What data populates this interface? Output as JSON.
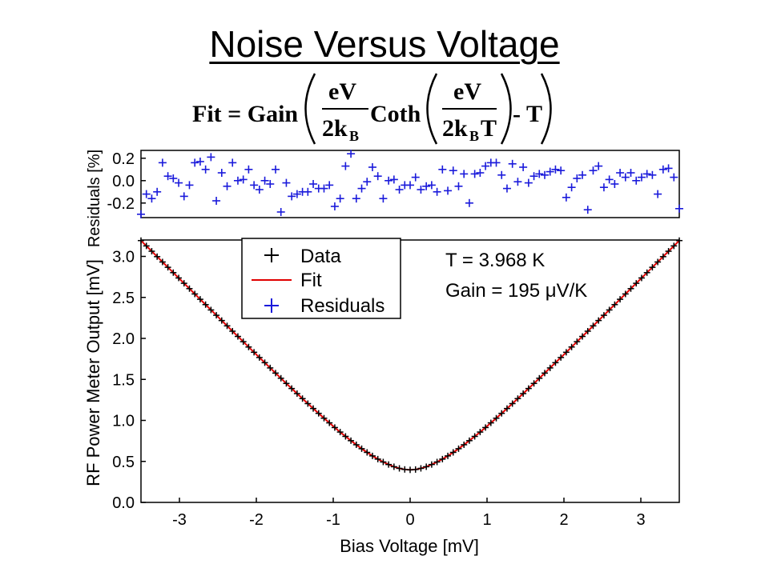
{
  "page": {
    "title": "Noise Versus Voltage"
  },
  "formula": {
    "lhs": "Fit = Gain",
    "frac1_num": "eV",
    "frac1_den": "2k",
    "sub": "B",
    "coth": "Coth",
    "frac2_num": "eV",
    "frac2_den_a": "2k",
    "frac2_den_b": "T",
    "minus_t": "- T"
  },
  "chart_data": [
    {
      "type": "scatter",
      "panel": "residuals",
      "title": "",
      "xlabel": "",
      "ylabel": "Residuals [%]",
      "xlim": [
        -3.5,
        3.5
      ],
      "ylim": [
        -0.33,
        0.27
      ],
      "yticks": [
        0.2,
        0.0,
        -0.2
      ],
      "ytick_labels": [
        "0.2",
        "0.0",
        "-0.2"
      ],
      "color": "#1a1adb",
      "series": [
        {
          "name": "Residuals",
          "x": [
            -3.5,
            -3.43,
            -3.36,
            -3.29,
            -3.22,
            -3.15,
            -3.08,
            -3.01,
            -2.94,
            -2.87,
            -2.8,
            -2.73,
            -2.66,
            -2.59,
            -2.52,
            -2.45,
            -2.38,
            -2.31,
            -2.24,
            -2.17,
            -2.1,
            -2.03,
            -1.96,
            -1.89,
            -1.82,
            -1.75,
            -1.68,
            -1.61,
            -1.54,
            -1.47,
            -1.4,
            -1.33,
            -1.26,
            -1.19,
            -1.12,
            -1.05,
            -0.98,
            -0.91,
            -0.84,
            -0.77,
            -0.7,
            -0.63,
            -0.56,
            -0.49,
            -0.42,
            -0.35,
            -0.28,
            -0.21,
            -0.14,
            -0.07,
            0.0,
            0.07,
            0.14,
            0.21,
            0.28,
            0.35,
            0.42,
            0.49,
            0.56,
            0.63,
            0.7,
            0.77,
            0.84,
            0.91,
            0.98,
            1.05,
            1.12,
            1.19,
            1.26,
            1.33,
            1.4,
            1.47,
            1.54,
            1.61,
            1.68,
            1.75,
            1.82,
            1.89,
            1.96,
            2.03,
            2.1,
            2.17,
            2.24,
            2.31,
            2.38,
            2.45,
            2.52,
            2.59,
            2.66,
            2.73,
            2.8,
            2.87,
            2.94,
            3.01,
            3.08,
            3.15,
            3.22,
            3.29,
            3.36,
            3.43,
            3.5
          ],
          "y": [
            -0.3,
            -0.12,
            -0.16,
            -0.1,
            0.16,
            0.04,
            0.02,
            -0.02,
            -0.14,
            -0.04,
            0.16,
            0.17,
            0.1,
            0.21,
            -0.18,
            0.07,
            -0.05,
            0.16,
            0.0,
            0.01,
            0.1,
            -0.04,
            -0.08,
            0.0,
            -0.03,
            0.1,
            -0.28,
            -0.02,
            -0.14,
            -0.12,
            -0.1,
            -0.1,
            -0.03,
            -0.07,
            -0.07,
            -0.04,
            -0.23,
            -0.16,
            0.13,
            0.24,
            -0.16,
            -0.07,
            -0.01,
            0.12,
            0.04,
            -0.16,
            0.0,
            0.01,
            -0.08,
            -0.04,
            -0.04,
            0.03,
            -0.08,
            -0.05,
            -0.04,
            -0.1,
            0.1,
            -0.09,
            0.09,
            -0.05,
            0.06,
            -0.2,
            0.06,
            0.07,
            0.13,
            0.16,
            0.16,
            0.05,
            -0.07,
            0.15,
            -0.01,
            0.12,
            -0.02,
            0.04,
            0.06,
            0.05,
            0.08,
            0.1,
            0.09,
            -0.15,
            -0.06,
            0.02,
            0.05,
            -0.26,
            0.09,
            0.13,
            -0.06,
            0.01,
            -0.03,
            0.07,
            0.03,
            0.07,
            0.0,
            0.03,
            0.06,
            0.05,
            -0.12,
            0.1,
            0.11,
            0.03,
            -0.25
          ]
        }
      ]
    },
    {
      "type": "line",
      "panel": "main",
      "title": "",
      "xlabel": "Bias Voltage [mV]",
      "ylabel": "RF Power Meter Output [mV]",
      "xlim": [
        -3.5,
        3.5
      ],
      "ylim": [
        0.0,
        3.2
      ],
      "xticks": [
        -3,
        -2,
        -1,
        0,
        1,
        2,
        3
      ],
      "xtick_labels": [
        "-3",
        "-2",
        "-1",
        "0",
        "1",
        "2",
        "3"
      ],
      "yticks": [
        0.0,
        0.5,
        1.0,
        1.5,
        2.0,
        2.5,
        3.0
      ],
      "ytick_labels": [
        "0.0",
        "0.5",
        "1.0",
        "1.5",
        "2.0",
        "2.5",
        "3.0"
      ],
      "legend": {
        "position": "upper-left",
        "entries": [
          "Data",
          "Fit",
          "Residuals"
        ]
      },
      "annotations": [
        "T = 3.968 K",
        "Gain = 195 μV/K"
      ],
      "series": [
        {
          "name": "Data",
          "color": "#000000",
          "marker": "+",
          "x": [
            -3.5,
            -3.43,
            -3.36,
            -3.29,
            -3.22,
            -3.15,
            -3.08,
            -3.01,
            -2.94,
            -2.87,
            -2.8,
            -2.73,
            -2.66,
            -2.59,
            -2.52,
            -2.45,
            -2.38,
            -2.31,
            -2.24,
            -2.17,
            -2.1,
            -2.03,
            -1.96,
            -1.89,
            -1.82,
            -1.75,
            -1.68,
            -1.61,
            -1.54,
            -1.47,
            -1.4,
            -1.33,
            -1.26,
            -1.19,
            -1.12,
            -1.05,
            -0.98,
            -0.91,
            -0.84,
            -0.77,
            -0.7,
            -0.63,
            -0.56,
            -0.49,
            -0.42,
            -0.35,
            -0.28,
            -0.21,
            -0.14,
            -0.07,
            0.0,
            0.07,
            0.14,
            0.21,
            0.28,
            0.35,
            0.42,
            0.49,
            0.56,
            0.63,
            0.7,
            0.77,
            0.84,
            0.91,
            0.98,
            1.05,
            1.12,
            1.19,
            1.26,
            1.33,
            1.4,
            1.47,
            1.54,
            1.61,
            1.68,
            1.75,
            1.82,
            1.89,
            1.96,
            2.03,
            2.1,
            2.17,
            2.24,
            2.31,
            2.38,
            2.45,
            2.52,
            2.59,
            2.66,
            2.73,
            2.8,
            2.87,
            2.94,
            3.01,
            3.08,
            3.15,
            3.22,
            3.29,
            3.36,
            3.43,
            3.5
          ],
          "y": [
            3.193,
            3.128,
            3.063,
            2.997,
            2.932,
            2.867,
            2.802,
            2.737,
            2.672,
            2.607,
            2.542,
            2.477,
            2.412,
            2.347,
            2.282,
            2.218,
            2.153,
            2.088,
            2.024,
            1.96,
            1.895,
            1.831,
            1.767,
            1.704,
            1.64,
            1.577,
            1.514,
            1.451,
            1.389,
            1.327,
            1.266,
            1.205,
            1.145,
            1.086,
            1.027,
            0.97,
            0.913,
            0.858,
            0.805,
            0.753,
            0.703,
            0.655,
            0.61,
            0.567,
            0.528,
            0.493,
            0.462,
            0.435,
            0.415,
            0.402,
            0.397,
            0.401,
            0.415,
            0.435,
            0.462,
            0.493,
            0.528,
            0.567,
            0.61,
            0.655,
            0.703,
            0.753,
            0.805,
            0.858,
            0.913,
            0.97,
            1.027,
            1.086,
            1.145,
            1.205,
            1.266,
            1.327,
            1.389,
            1.451,
            1.514,
            1.577,
            1.64,
            1.704,
            1.767,
            1.831,
            1.895,
            1.96,
            2.024,
            2.088,
            2.153,
            2.218,
            2.282,
            2.347,
            2.412,
            2.477,
            2.542,
            2.607,
            2.672,
            2.737,
            2.802,
            2.867,
            2.932,
            2.997,
            3.063,
            3.128,
            3.193
          ]
        },
        {
          "name": "Fit",
          "color": "#e00000",
          "x": [
            -3.5,
            -3.43,
            -3.36,
            -3.29,
            -3.22,
            -3.15,
            -3.08,
            -3.01,
            -2.94,
            -2.87,
            -2.8,
            -2.73,
            -2.66,
            -2.59,
            -2.52,
            -2.45,
            -2.38,
            -2.31,
            -2.24,
            -2.17,
            -2.1,
            -2.03,
            -1.96,
            -1.89,
            -1.82,
            -1.75,
            -1.68,
            -1.61,
            -1.54,
            -1.47,
            -1.4,
            -1.33,
            -1.26,
            -1.19,
            -1.12,
            -1.05,
            -0.98,
            -0.91,
            -0.84,
            -0.77,
            -0.7,
            -0.63,
            -0.56,
            -0.49,
            -0.42,
            -0.35,
            -0.28,
            -0.21,
            -0.14,
            -0.07,
            0.0,
            0.07,
            0.14,
            0.21,
            0.28,
            0.35,
            0.42,
            0.49,
            0.56,
            0.63,
            0.7,
            0.77,
            0.84,
            0.91,
            0.98,
            1.05,
            1.12,
            1.19,
            1.26,
            1.33,
            1.4,
            1.47,
            1.54,
            1.61,
            1.68,
            1.75,
            1.82,
            1.89,
            1.96,
            2.03,
            2.1,
            2.17,
            2.24,
            2.31,
            2.38,
            2.45,
            2.52,
            2.59,
            2.66,
            2.73,
            2.8,
            2.87,
            2.94,
            3.01,
            3.08,
            3.15,
            3.22,
            3.29,
            3.36,
            3.43,
            3.5
          ],
          "y": [
            3.193,
            3.128,
            3.063,
            2.997,
            2.932,
            2.867,
            2.802,
            2.737,
            2.672,
            2.607,
            2.542,
            2.477,
            2.412,
            2.347,
            2.282,
            2.218,
            2.153,
            2.088,
            2.024,
            1.96,
            1.895,
            1.831,
            1.767,
            1.704,
            1.64,
            1.577,
            1.514,
            1.451,
            1.389,
            1.327,
            1.266,
            1.205,
            1.145,
            1.086,
            1.027,
            0.97,
            0.913,
            0.858,
            0.805,
            0.753,
            0.703,
            0.655,
            0.61,
            0.567,
            0.528,
            0.493,
            0.462,
            0.435,
            0.415,
            0.402,
            0.397,
            0.401,
            0.415,
            0.435,
            0.462,
            0.493,
            0.528,
            0.567,
            0.61,
            0.655,
            0.703,
            0.753,
            0.805,
            0.858,
            0.913,
            0.97,
            1.027,
            1.086,
            1.145,
            1.205,
            1.266,
            1.327,
            1.389,
            1.451,
            1.514,
            1.577,
            1.64,
            1.704,
            1.767,
            1.831,
            1.895,
            1.96,
            2.024,
            2.088,
            2.153,
            2.218,
            2.282,
            2.347,
            2.412,
            2.477,
            2.542,
            2.607,
            2.672,
            2.737,
            2.802,
            2.867,
            2.932,
            2.997,
            3.063,
            3.128,
            3.193
          ]
        }
      ]
    }
  ]
}
